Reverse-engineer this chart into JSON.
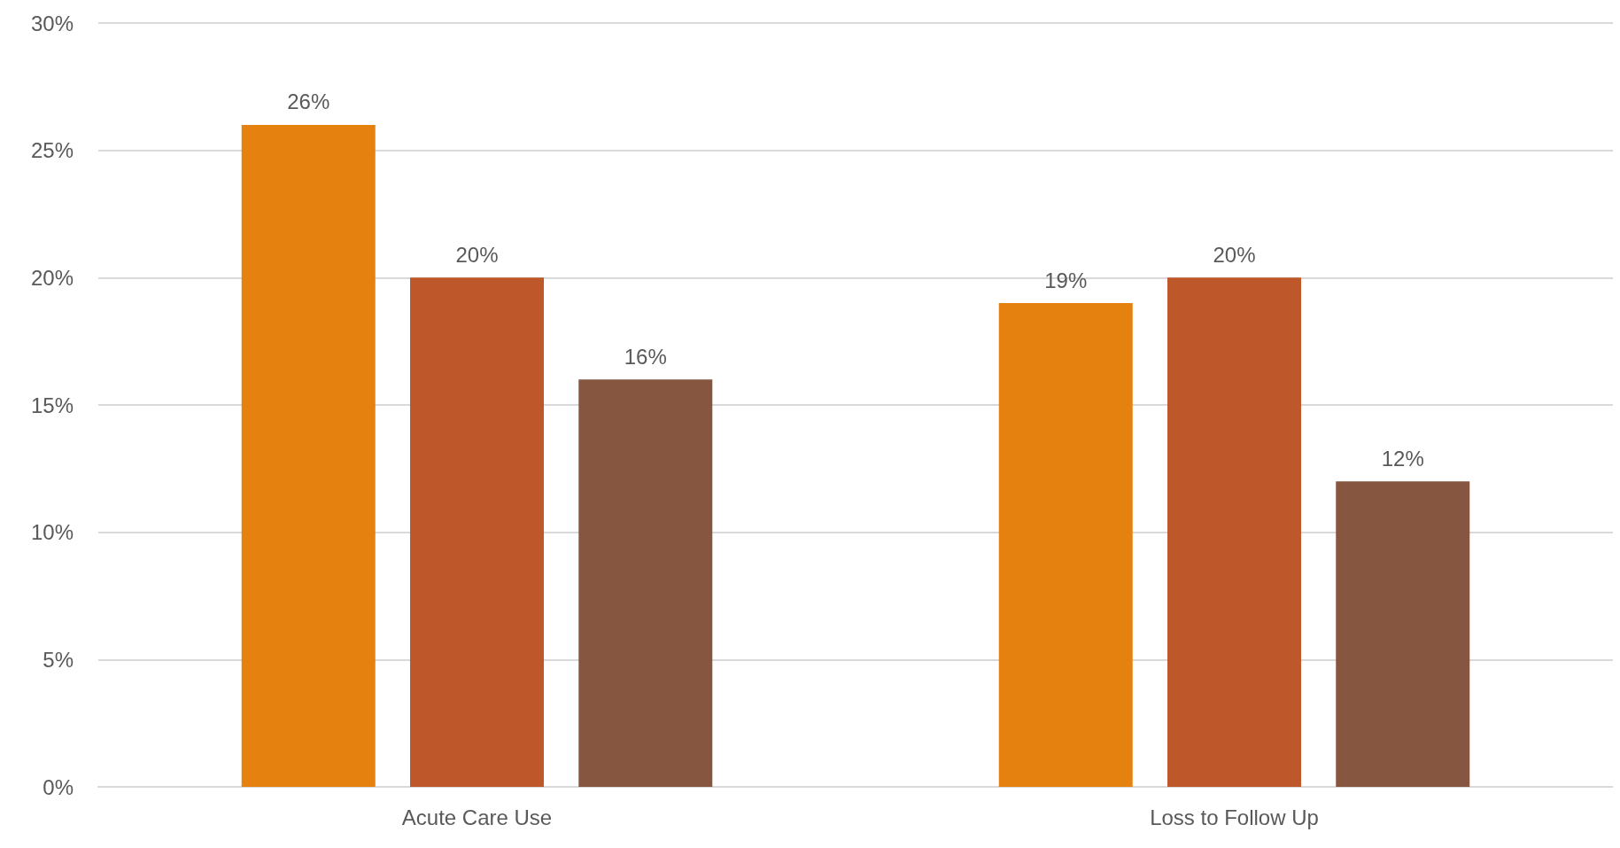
{
  "chart_data": {
    "type": "bar",
    "categories": [
      "Acute Care Use",
      "Loss to Follow Up"
    ],
    "series": [
      {
        "color": "#e5820f",
        "values": [
          26,
          19
        ],
        "value_labels": [
          "26%",
          "19%"
        ]
      },
      {
        "color": "#be582b",
        "values": [
          20,
          20
        ],
        "value_labels": [
          "20%",
          "20%"
        ]
      },
      {
        "color": "#865640",
        "values": [
          16,
          12
        ],
        "value_labels": [
          "16%",
          "12%"
        ]
      }
    ],
    "ylim": [
      0,
      30
    ],
    "yticks": [
      {
        "value": 0,
        "label": "0%"
      },
      {
        "value": 5,
        "label": "5%"
      },
      {
        "value": 10,
        "label": "10%"
      },
      {
        "value": 15,
        "label": "15%"
      },
      {
        "value": 20,
        "label": "20%"
      },
      {
        "value": 25,
        "label": "25%"
      },
      {
        "value": 30,
        "label": "30%"
      }
    ],
    "grid": "y"
  }
}
